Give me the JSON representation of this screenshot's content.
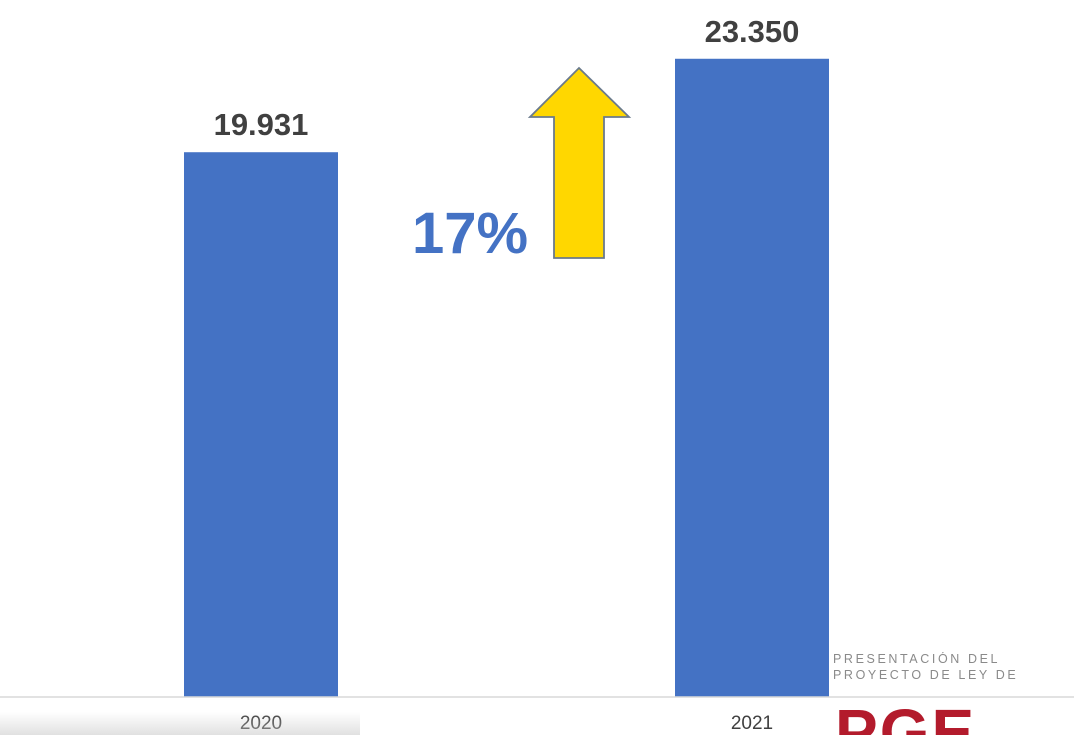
{
  "chart_data": {
    "type": "bar",
    "categories": [
      "2020",
      "2021"
    ],
    "values": [
      19931,
      23350
    ],
    "value_labels": [
      "19.931",
      "23.350"
    ],
    "ylim": [
      0,
      25500
    ],
    "grid": false,
    "bar_color": "#4472c4",
    "annotation": {
      "text": "17%",
      "arrow": "up-arrow-icon",
      "arrow_color": "#ffd700"
    }
  },
  "logo": {
    "line1": "PRESENTACIÓN DEL",
    "line2": "PROYECTO DE LEY DE",
    "mark": "PGE",
    "color": "#b31b2c"
  }
}
